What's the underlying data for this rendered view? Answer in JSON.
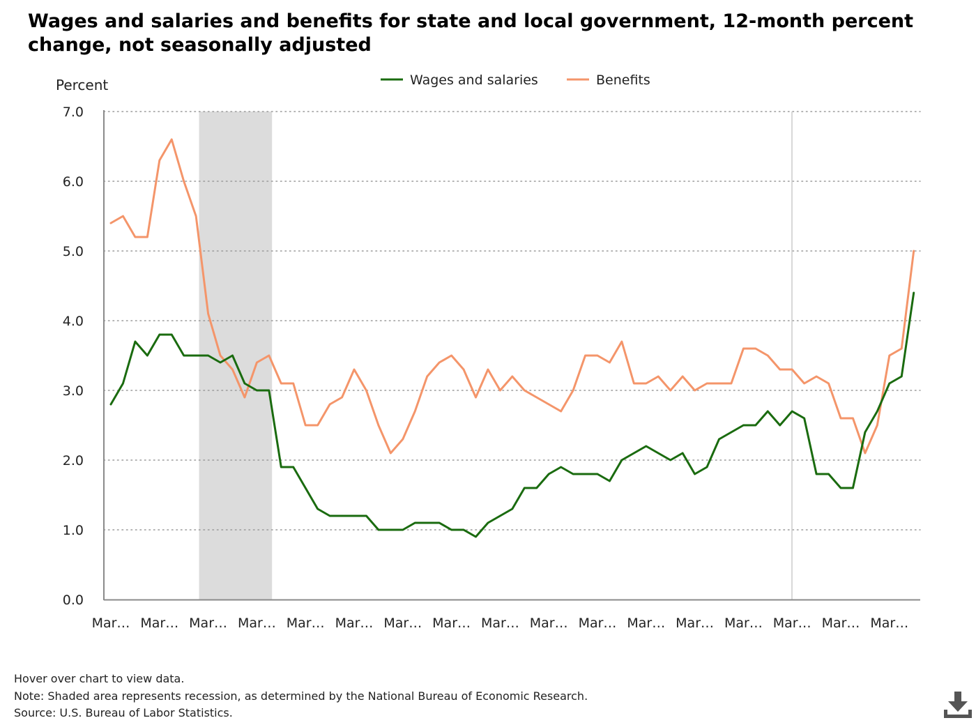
{
  "title": "Wages and salaries and benefits for state and local government, 12-month percent change, not seasonally adjusted",
  "notes": {
    "hover": "Hover over chart to view data.",
    "note": "Note: Shaded area represents recession, as determined by the National Bureau of Economic Research.",
    "source": "Source: U.S. Bureau of Labor Statistics."
  },
  "download_icon": "download-icon",
  "colors": {
    "wages": "#1a6b0f",
    "benefits": "#f4956a",
    "recession": "#dcdcdc",
    "grid": "#9a9a9a",
    "axis": "#8a8a8a"
  },
  "chart_data": {
    "type": "line",
    "ylabel": "Percent",
    "xlabel": "",
    "ylim": [
      0,
      7
    ],
    "y_ticks": [
      "0.0",
      "1.0",
      "2.0",
      "3.0",
      "4.0",
      "5.0",
      "6.0",
      "7.0"
    ],
    "x_tick_labels": [
      "Mar…",
      "Mar…",
      "Mar…",
      "Mar…",
      "Mar…",
      "Mar…",
      "Mar…",
      "Mar…",
      "Mar…",
      "Mar…",
      "Mar…",
      "Mar…",
      "Mar…",
      "Mar…",
      "Mar…",
      "Mar…",
      "Mar…"
    ],
    "quarters_per_tick": 4,
    "recession_quarters": [
      7.25,
      13.25
    ],
    "grid": "horizontal-dotted",
    "legend_position": "top-center",
    "series": [
      {
        "name": "Wages and salaries",
        "values": [
          2.8,
          3.1,
          3.7,
          3.5,
          3.8,
          3.8,
          3.5,
          3.5,
          3.5,
          3.4,
          3.5,
          3.1,
          3.0,
          3.0,
          1.9,
          1.9,
          1.6,
          1.3,
          1.2,
          1.2,
          1.2,
          1.2,
          1.0,
          1.0,
          1.0,
          1.1,
          1.1,
          1.1,
          1.0,
          1.0,
          0.9,
          1.1,
          1.2,
          1.3,
          1.6,
          1.6,
          1.8,
          1.9,
          1.8,
          1.8,
          1.8,
          1.7,
          2.0,
          2.1,
          2.2,
          2.1,
          2.0,
          2.1,
          1.8,
          1.9,
          2.3,
          2.4,
          2.5,
          2.5,
          2.7,
          2.5,
          2.7,
          2.6,
          1.8,
          1.8,
          1.6,
          1.6,
          2.4,
          2.7,
          3.1,
          3.2,
          4.4
        ]
      },
      {
        "name": "Benefits",
        "values": [
          5.4,
          5.5,
          5.2,
          5.2,
          6.3,
          6.6,
          6.0,
          5.5,
          4.1,
          3.5,
          3.3,
          2.9,
          3.4,
          3.5,
          3.1,
          3.1,
          2.5,
          2.5,
          2.8,
          2.9,
          3.3,
          3.0,
          2.5,
          2.1,
          2.3,
          2.7,
          3.2,
          3.4,
          3.5,
          3.3,
          2.9,
          3.3,
          3.0,
          3.2,
          3.0,
          2.9,
          2.8,
          2.7,
          3.0,
          3.5,
          3.5,
          3.4,
          3.7,
          3.1,
          3.1,
          3.2,
          3.0,
          3.2,
          3.0,
          3.1,
          3.1,
          3.1,
          3.6,
          3.6,
          3.5,
          3.3,
          3.3,
          3.1,
          3.2,
          3.1,
          2.6,
          2.6,
          2.1,
          2.5,
          3.5,
          3.6,
          5.0
        ]
      }
    ]
  }
}
